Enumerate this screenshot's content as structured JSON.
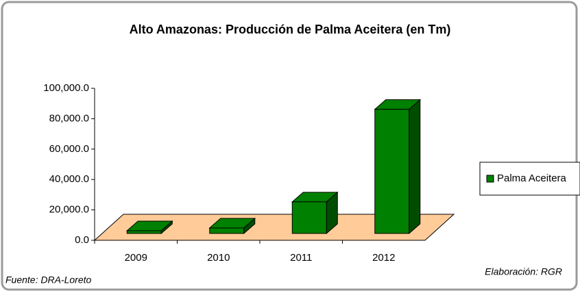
{
  "chart_data": {
    "type": "bar3d",
    "title": "Alto Amazonas: Producción de Palma Aceitera (en Tm)",
    "categories": [
      "2009",
      "2010",
      "2011",
      "2012"
    ],
    "series": [
      {
        "name": "Palma Aceitera",
        "color": "#008000",
        "values": [
          1800,
          3600,
          20800,
          81700
        ]
      }
    ],
    "ylim": [
      0,
      100000
    ],
    "yticks": [
      {
        "value": 0,
        "label": "0.0"
      },
      {
        "value": 20000,
        "label": "20,000.0"
      },
      {
        "value": 40000,
        "label": "40,000.0"
      },
      {
        "value": 60000,
        "label": "60,000.0"
      },
      {
        "value": 80000,
        "label": "80,000.0"
      },
      {
        "value": 100000,
        "label": "100,000.0"
      }
    ],
    "legend": "right",
    "source": "Fuente: DRA-Loreto",
    "credit": "Elaboración: RGR"
  }
}
